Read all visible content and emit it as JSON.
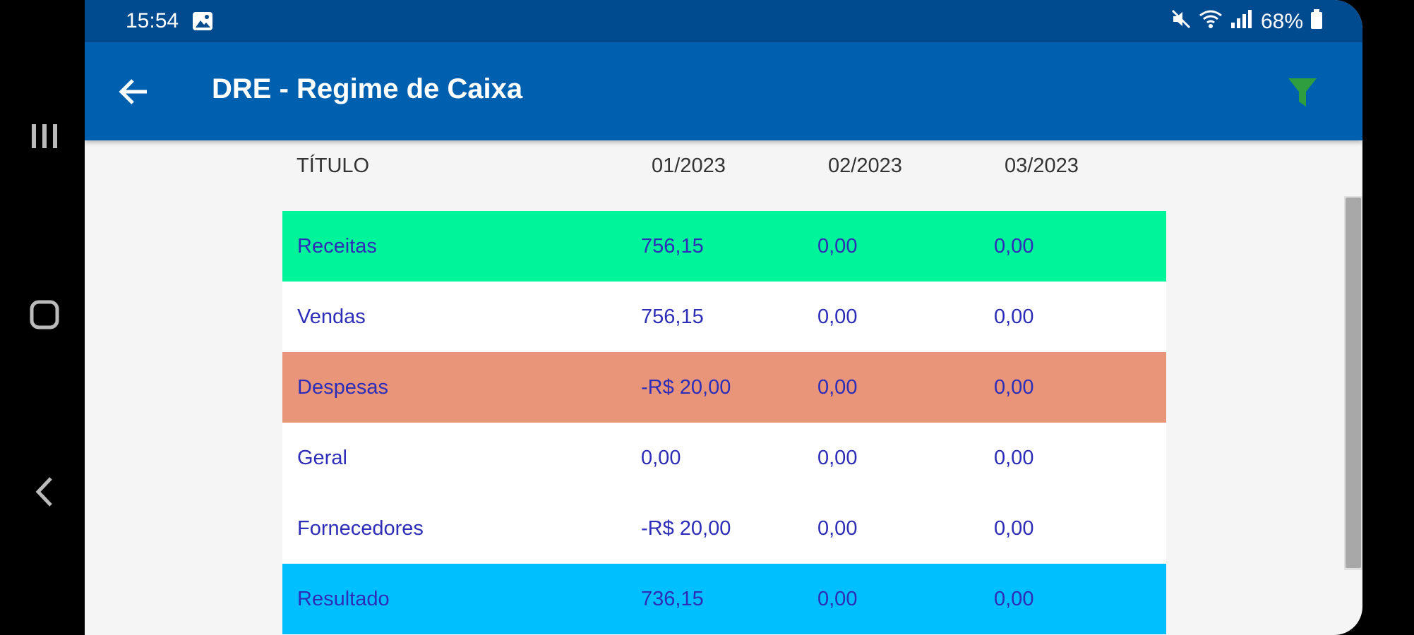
{
  "status_bar": {
    "time": "15:54",
    "battery": "68%",
    "icons": [
      "image-icon",
      "mute-icon",
      "wifi-icon",
      "signal-icon",
      "battery-icon"
    ]
  },
  "app_bar": {
    "title": "DRE - Regime de Caixa",
    "back_icon": "arrow-left-icon",
    "filter_icon": "filter-icon",
    "filter_color": "#2e9e3e"
  },
  "table": {
    "headers": [
      "TÍTULO",
      "01/2023",
      "02/2023",
      "03/2023"
    ],
    "rows": [
      {
        "title": "Receitas",
        "m1": "756,15",
        "m2": "0,00",
        "m3": "0,00",
        "bg": "#00f59a"
      },
      {
        "title": "Vendas",
        "m1": "756,15",
        "m2": "0,00",
        "m3": "0,00",
        "bg": "#ffffff"
      },
      {
        "title": "Despesas",
        "m1": "-R$ 20,00",
        "m2": "0,00",
        "m3": "0,00",
        "bg": "#e8957a"
      },
      {
        "title": "Geral",
        "m1": "0,00",
        "m2": "0,00",
        "m3": "0,00",
        "bg": "#ffffff"
      },
      {
        "title": "Fornecedores",
        "m1": "-R$ 20,00",
        "m2": "0,00",
        "m3": "0,00",
        "bg": "#ffffff"
      },
      {
        "title": "Resultado",
        "m1": "736,15",
        "m2": "0,00",
        "m3": "0,00",
        "bg": "#00bfff"
      }
    ]
  },
  "colors": {
    "status_bar": "#004a8f",
    "app_bar": "#0060b0",
    "text_values": "#2d2db8"
  }
}
